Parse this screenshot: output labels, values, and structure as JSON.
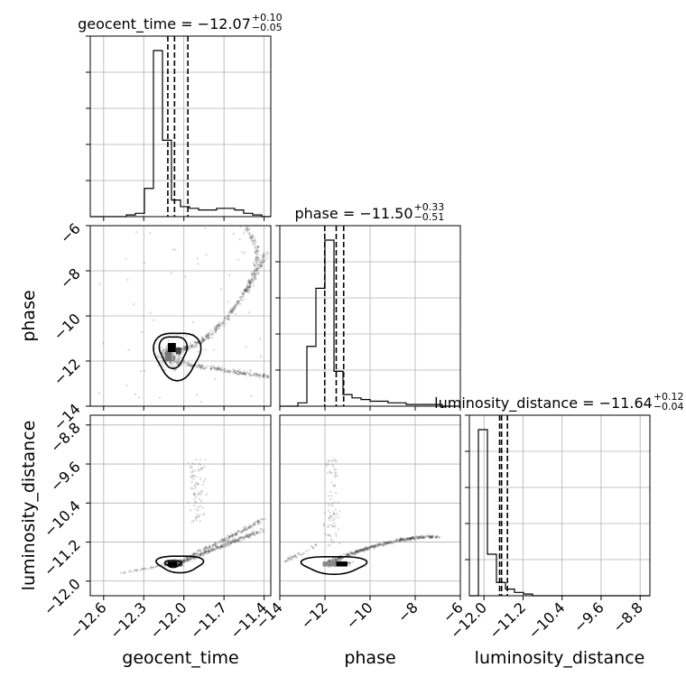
{
  "chart_data": {
    "type": "corner",
    "parameters": [
      "geocent_time",
      "phase",
      "luminosity_distance"
    ],
    "axis_labels": [
      "geocent_time",
      "phase",
      "luminosity_distance"
    ],
    "titles": [
      {
        "prefix": "geocent_time = −12.07",
        "plus": "+0.10",
        "minus": "−0.05"
      },
      {
        "prefix": "phase = −11.50",
        "plus": "+0.33",
        "minus": "−0.51"
      },
      {
        "prefix": "luminosity_distance = −11.64",
        "plus": "+0.12",
        "minus": "−0.04"
      }
    ],
    "ranges": [
      [
        -12.7,
        -11.35
      ],
      [
        -14,
        -6
      ],
      [
        -12.3,
        -8.6
      ]
    ],
    "ticks": [
      {
        "values": [
          -12.6,
          -12.3,
          -12.0,
          -11.7,
          -11.4
        ],
        "labels": [
          "−12.6",
          "−12.3",
          "−12.0",
          "−11.7",
          "−11.4"
        ]
      },
      {
        "values": [
          -14,
          -12,
          -10,
          -8,
          -6
        ],
        "labels": [
          "−14",
          "−12",
          "−10",
          "−8",
          "−6"
        ]
      },
      {
        "values": [
          -12.0,
          -11.2,
          -10.4,
          -9.6,
          -8.8
        ],
        "labels": [
          "−12.0",
          "−11.2",
          "−10.4",
          "−9.6",
          "−8.8"
        ]
      }
    ],
    "quantiles": [
      [
        -12.12,
        -12.07,
        -11.97
      ],
      [
        -12.01,
        -11.5,
        -11.17
      ],
      [
        -11.68,
        -11.64,
        -11.52
      ]
    ],
    "histograms": [
      {
        "edges_start": -12.7,
        "bin_width": 0.0675,
        "counts": [
          0,
          0,
          0,
          0,
          1,
          2,
          17,
          100,
          46,
          10,
          6,
          5,
          4,
          4,
          5,
          5,
          4,
          2,
          1,
          0
        ]
      },
      {
        "edges_start": -14,
        "bin_width": 0.4,
        "counts": [
          0,
          0,
          2,
          36,
          71,
          100,
          21,
          7,
          5,
          4,
          3,
          3,
          2,
          2,
          1,
          1,
          1,
          1,
          0,
          0
        ]
      },
      {
        "edges_start": -12.3,
        "bin_width": 0.185,
        "counts": [
          0,
          100,
          25,
          8,
          4,
          2,
          1,
          0,
          0,
          0,
          0,
          0,
          0,
          0,
          0,
          0,
          0,
          0,
          0,
          0
        ]
      }
    ],
    "grid": true
  }
}
